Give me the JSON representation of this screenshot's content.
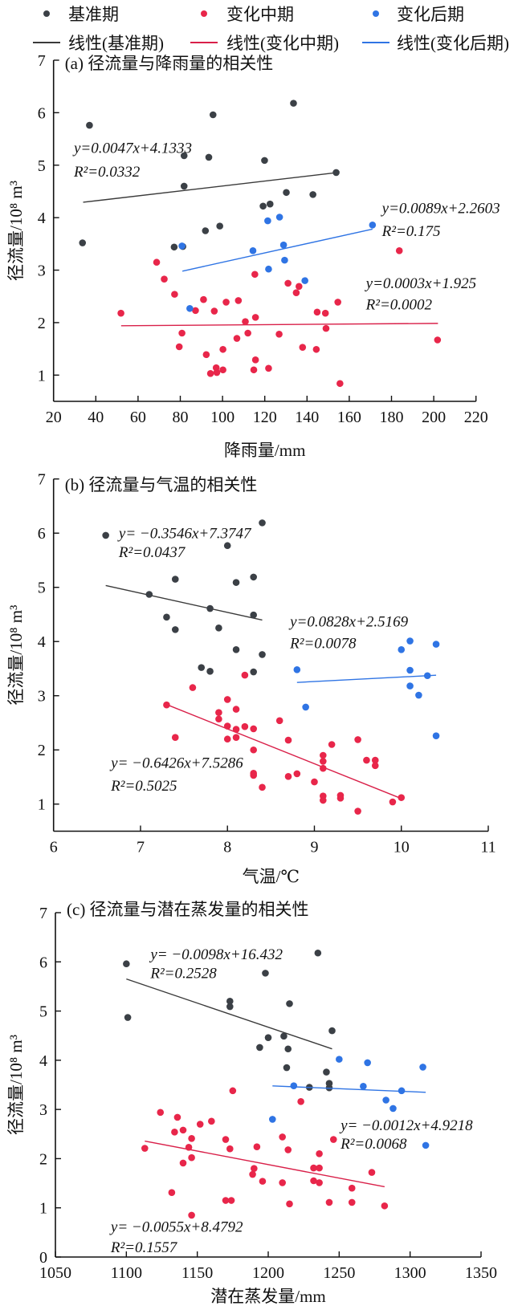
{
  "colors": {
    "base": "#3b4046",
    "mid": "#e8264a",
    "late": "#2f74e4",
    "base_line": "#3a3a3a",
    "mid_line": "#d92049",
    "late_line": "#2f74e4",
    "axis": "#111111"
  },
  "legend": {
    "items": [
      {
        "kind": "marker",
        "series": "base",
        "label": "基准期"
      },
      {
        "kind": "marker",
        "series": "mid",
        "label": "变化中期"
      },
      {
        "kind": "marker",
        "series": "late",
        "label": "变化后期"
      },
      {
        "kind": "line",
        "series": "base",
        "label": "线性(基准期)"
      },
      {
        "kind": "line",
        "series": "mid",
        "label": "线性(变化中期)"
      },
      {
        "kind": "line",
        "series": "late",
        "label": "线性(变化后期)"
      }
    ]
  },
  "chart_data": [
    {
      "type": "scatter",
      "title": "(a) 径流量与降雨量的相关性",
      "xlabel": "降雨量/mm",
      "ylabel": "径流量/10⁸ m³",
      "xlim": [
        20,
        220
      ],
      "ylim": [
        0.5,
        7
      ],
      "xticks": [
        "20",
        "40",
        "60",
        "80",
        "100",
        "120",
        "140",
        "160",
        "180",
        "200",
        "220"
      ],
      "yticks": [
        "1",
        "2",
        "3",
        "4",
        "5",
        "6",
        "7"
      ],
      "grid": false,
      "series": [
        {
          "key": "base",
          "name": "基准期",
          "points": [
            [
              37,
              5.76
            ],
            [
              33.7,
              3.52
            ],
            [
              95.5,
              5.96
            ],
            [
              133.6,
              6.18
            ],
            [
              81.8,
              5.18
            ],
            [
              93.5,
              5.15
            ],
            [
              119.9,
              5.09
            ],
            [
              153.8,
              4.86
            ],
            [
              81.8,
              4.6
            ],
            [
              130.2,
              4.48
            ],
            [
              142.8,
              4.44
            ],
            [
              119.2,
              4.22
            ],
            [
              122.5,
              4.26
            ],
            [
              98.7,
              3.84
            ],
            [
              91.9,
              3.75
            ],
            [
              77.1,
              3.44
            ],
            [
              81.2,
              3.45
            ]
          ],
          "trendline": {
            "equation": "y=0.0047x+4.1333",
            "r2": "R²=0.0332",
            "slope": 0.0047,
            "intercept": 4.1333,
            "x_range": [
              34,
              154
            ],
            "label_at": [
              29.6,
              5.23,
              4.78
            ]
          }
        },
        {
          "key": "mid",
          "name": "变化中期",
          "points": [
            [
              51.9,
              2.18
            ],
            [
              68.8,
              3.15
            ],
            [
              72.4,
              2.83
            ],
            [
              77.3,
              2.54
            ],
            [
              91,
              2.44
            ],
            [
              87.2,
              2.23
            ],
            [
              96.1,
              2.22
            ],
            [
              101.7,
              2.39
            ],
            [
              107.5,
              2.42
            ],
            [
              115.3,
              2.92
            ],
            [
              131,
              2.75
            ],
            [
              136.2,
              2.69
            ],
            [
              134.9,
              2.57
            ],
            [
              154.6,
              2.39
            ],
            [
              144.8,
              2.2
            ],
            [
              148.7,
              2.18
            ],
            [
              183.7,
              3.37
            ],
            [
              115.6,
              2.1
            ],
            [
              110.8,
              2.02
            ],
            [
              149,
              1.89
            ],
            [
              80.8,
              1.8
            ],
            [
              112,
              1.8
            ],
            [
              126.8,
              1.78
            ],
            [
              106.8,
              1.7
            ],
            [
              201.8,
              1.67
            ],
            [
              79.5,
              1.54
            ],
            [
              100.2,
              1.49
            ],
            [
              137.9,
              1.53
            ],
            [
              144.4,
              1.49
            ],
            [
              92.3,
              1.39
            ],
            [
              115.6,
              1.29
            ],
            [
              97,
              1.14
            ],
            [
              94.3,
              1.03
            ],
            [
              97.3,
              1.05
            ],
            [
              100.2,
              1.1
            ],
            [
              114.8,
              1.1
            ],
            [
              121.8,
              1.13
            ],
            [
              155.6,
              0.84
            ]
          ],
          "trendline": {
            "equation": "y=0.0003x+1.925",
            "r2": "R²=0.0002",
            "slope": 0.0003,
            "intercept": 1.925,
            "x_range": [
              52,
              202
            ],
            "label_at": [
              167.9,
              2.66,
              2.25
            ]
          }
        },
        {
          "key": "late",
          "name": "变化后期",
          "points": [
            [
              80.8,
              3.46
            ],
            [
              121.4,
              3.94
            ],
            [
              127,
              4.01
            ],
            [
              171,
              3.86
            ],
            [
              128.9,
              3.48
            ],
            [
              114.4,
              3.37
            ],
            [
              129.4,
              3.19
            ],
            [
              121.8,
              3.02
            ],
            [
              139,
              2.8
            ],
            [
              84.5,
              2.27
            ]
          ],
          "trendline": {
            "equation": "y=0.0089x+2.2603",
            "r2": "R²=0.175",
            "slope": 0.0089,
            "intercept": 2.2603,
            "x_range": [
              81,
              171
            ],
            "label_at": [
              175.5,
              4.09,
              3.65
            ]
          }
        }
      ]
    },
    {
      "type": "scatter",
      "title": "(b) 径流量与气温的相关性",
      "xlabel": "气温/℃",
      "ylabel": "径流量/10⁸ m³",
      "xlim": [
        6,
        11
      ],
      "ylim": [
        0.5,
        7
      ],
      "xticks": [
        "6",
        "7",
        "8",
        "9",
        "10",
        "11"
      ],
      "yticks": [
        "1",
        "2",
        "3",
        "4",
        "5",
        "6",
        "7"
      ],
      "grid": false,
      "series": [
        {
          "key": "base",
          "name": "基准期",
          "points": [
            [
              6.6,
              5.96
            ],
            [
              8.4,
              6.19
            ],
            [
              8.0,
              5.77
            ],
            [
              7.4,
              5.15
            ],
            [
              8.1,
              5.09
            ],
            [
              8.3,
              5.19
            ],
            [
              7.1,
              4.87
            ],
            [
              7.8,
              4.61
            ],
            [
              8.3,
              4.49
            ],
            [
              7.3,
              4.45
            ],
            [
              7.4,
              4.22
            ],
            [
              7.9,
              4.25
            ],
            [
              8.1,
              3.85
            ],
            [
              8.4,
              3.76
            ],
            [
              7.7,
              3.52
            ],
            [
              7.8,
              3.45
            ],
            [
              8.3,
              3.44
            ]
          ],
          "trendline": {
            "equation": "y= −0.3546x+7.3747",
            "r2": "R²=0.0437",
            "slope": -0.3546,
            "intercept": 7.3747,
            "x_range": [
              6.6,
              8.4
            ],
            "label_at": [
              6.75,
              5.91,
              5.56
            ]
          }
        },
        {
          "key": "mid",
          "name": "变化中期",
          "points": [
            [
              8.2,
              3.38
            ],
            [
              7.6,
              3.15
            ],
            [
              7.3,
              2.83
            ],
            [
              8.0,
              2.93
            ],
            [
              8.1,
              2.75
            ],
            [
              7.9,
              2.69
            ],
            [
              7.9,
              2.57
            ],
            [
              8.0,
              2.44
            ],
            [
              8.1,
              2.38
            ],
            [
              8.2,
              2.43
            ],
            [
              8.3,
              2.39
            ],
            [
              8.6,
              2.54
            ],
            [
              7.4,
              2.23
            ],
            [
              8.0,
              2.2
            ],
            [
              8.1,
              2.23
            ],
            [
              8.3,
              2.0
            ],
            [
              8.7,
              2.18
            ],
            [
              9.2,
              2.1
            ],
            [
              9.5,
              2.19
            ],
            [
              9.1,
              1.9
            ],
            [
              9.1,
              1.79
            ],
            [
              9.1,
              1.66
            ],
            [
              9.6,
              1.81
            ],
            [
              9.7,
              1.81
            ],
            [
              9.7,
              1.71
            ],
            [
              8.3,
              1.53
            ],
            [
              8.3,
              1.57
            ],
            [
              8.7,
              1.51
            ],
            [
              8.8,
              1.56
            ],
            [
              8.4,
              1.31
            ],
            [
              9.0,
              1.41
            ],
            [
              9.1,
              1.15
            ],
            [
              9.1,
              1.07
            ],
            [
              9.3,
              1.16
            ],
            [
              9.3,
              1.11
            ],
            [
              9.5,
              0.87
            ],
            [
              9.9,
              1.04
            ],
            [
              10.0,
              1.12
            ]
          ],
          "trendline": {
            "equation": "y= −0.6426x+7.5286",
            "r2": "R²=0.5025",
            "slope": -0.6426,
            "intercept": 7.5286,
            "x_range": [
              7.3,
              10.0
            ],
            "label_at": [
              6.66,
              1.67,
              1.25
            ]
          }
        },
        {
          "key": "late",
          "name": "变化后期",
          "points": [
            [
              8.8,
              3.48
            ],
            [
              8.9,
              2.79
            ],
            [
              10.0,
              3.85
            ],
            [
              10.1,
              4.01
            ],
            [
              10.4,
              3.95
            ],
            [
              10.1,
              3.47
            ],
            [
              10.3,
              3.37
            ],
            [
              10.1,
              3.18
            ],
            [
              10.2,
              3.01
            ],
            [
              10.4,
              2.26
            ]
          ],
          "trendline": {
            "equation": "y=0.0828x+2.5169",
            "r2": "R²=0.0078",
            "slope": 0.0828,
            "intercept": 2.5169,
            "x_range": [
              8.8,
              10.4
            ],
            "label_at": [
              8.72,
              4.28,
              3.88
            ]
          }
        }
      ]
    },
    {
      "type": "scatter",
      "title": "(c) 径流量与潜在蒸发量的相关性",
      "xlabel": "潜在蒸发量/mm",
      "ylabel": "径流量/10⁸ m³",
      "xlim": [
        1050,
        1350
      ],
      "ylim": [
        0,
        7
      ],
      "xticks": [
        "1050",
        "1100",
        "1150",
        "1200",
        "1250",
        "1300",
        "1350"
      ],
      "yticks": [
        "0",
        "1",
        "2",
        "3",
        "4",
        "5",
        "6",
        "7"
      ],
      "grid": false,
      "series": [
        {
          "key": "base",
          "name": "基准期",
          "points": [
            [
              1100,
              5.96
            ],
            [
              1101,
              4.87
            ],
            [
              1235,
              6.18
            ],
            [
              1198,
              5.77
            ],
            [
              1173,
              5.2
            ],
            [
              1173,
              5.09
            ],
            [
              1215,
              5.15
            ],
            [
              1245,
              4.6
            ],
            [
              1200,
              4.46
            ],
            [
              1211,
              4.49
            ],
            [
              1194,
              4.26
            ],
            [
              1214,
              4.23
            ],
            [
              1213,
              3.85
            ],
            [
              1241,
              3.76
            ],
            [
              1229,
              3.45
            ],
            [
              1243,
              3.53
            ],
            [
              1243,
              3.44
            ]
          ],
          "trendline": {
            "equation": "y= −0.0098x+16.432",
            "r2": "R²=0.2528",
            "slope": -0.0098,
            "intercept": 16.432,
            "x_range": [
              1100,
              1245
            ],
            "label_at": [
              1117,
              6.05,
              5.67
            ]
          }
        },
        {
          "key": "mid",
          "name": "变化中期",
          "points": [
            [
              1175,
              3.38
            ],
            [
              1223,
              3.16
            ],
            [
              1124,
              2.94
            ],
            [
              1136,
              2.84
            ],
            [
              1152,
              2.7
            ],
            [
              1160,
              2.76
            ],
            [
              1134,
              2.54
            ],
            [
              1140,
              2.58
            ],
            [
              1146,
              2.41
            ],
            [
              1170,
              2.39
            ],
            [
              1210,
              2.44
            ],
            [
              1246,
              2.39
            ],
            [
              1113,
              2.21
            ],
            [
              1144,
              2.23
            ],
            [
              1173,
              2.2
            ],
            [
              1192,
              2.24
            ],
            [
              1214,
              2.18
            ],
            [
              1236,
              2.1
            ],
            [
              1146,
              2.02
            ],
            [
              1140,
              1.91
            ],
            [
              1190,
              1.8
            ],
            [
              1189,
              1.68
            ],
            [
              1196,
              1.54
            ],
            [
              1210,
              1.51
            ],
            [
              1232,
              1.81
            ],
            [
              1236,
              1.81
            ],
            [
              1232,
              1.55
            ],
            [
              1236,
              1.51
            ],
            [
              1273,
              1.72
            ],
            [
              1259,
              1.4
            ],
            [
              1132,
              1.31
            ],
            [
              1170,
              1.15
            ],
            [
              1174,
              1.15
            ],
            [
              1215,
              1.08
            ],
            [
              1243,
              1.11
            ],
            [
              1259,
              1.11
            ],
            [
              1282,
              1.04
            ],
            [
              1146,
              0.85
            ]
          ],
          "trendline": {
            "equation": "y= −0.0055x+8.4792",
            "r2": "R²=0.1557",
            "slope": -0.0055,
            "intercept": 8.4792,
            "x_range": [
              1113,
              1282
            ],
            "label_at": [
              1089,
              0.51,
              0.1
            ]
          }
        },
        {
          "key": "late",
          "name": "变化后期",
          "points": [
            [
              1250,
              4.02
            ],
            [
              1270,
              3.95
            ],
            [
              1309,
              3.86
            ],
            [
              1218,
              3.48
            ],
            [
              1267,
              3.47
            ],
            [
              1294,
              3.38
            ],
            [
              1283,
              3.19
            ],
            [
              1288,
              3.02
            ],
            [
              1203,
              2.8
            ],
            [
              1311,
              2.27
            ]
          ],
          "trendline": {
            "equation": "y= −0.0012x+4.9218",
            "r2": "R²=0.0068",
            "slope": -0.0012,
            "intercept": 4.9218,
            "x_range": [
              1203,
              1311
            ],
            "label_at": [
              1251,
              2.58,
              2.2
            ]
          }
        }
      ]
    }
  ]
}
